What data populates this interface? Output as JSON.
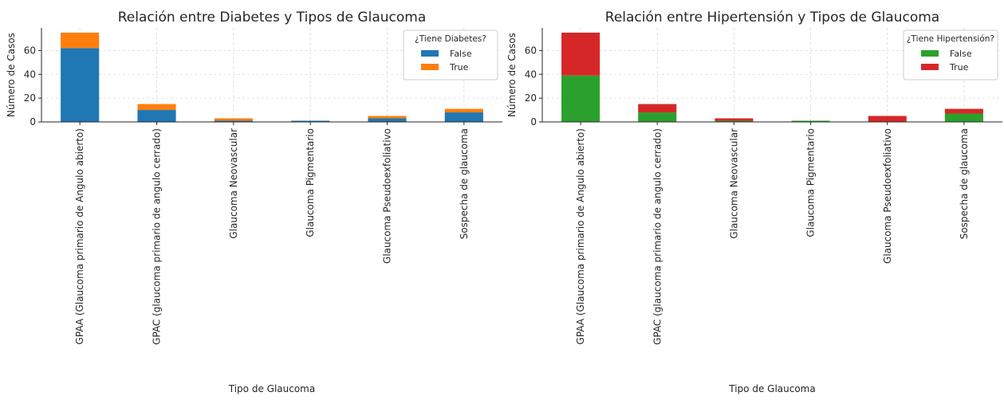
{
  "chart_data": [
    {
      "type": "bar",
      "stacked": true,
      "title": "Relación entre Diabetes y Tipos de Glaucoma",
      "xlabel": "Tipo de Glaucoma",
      "ylabel": "Número de Casos",
      "legend_title": "¿Tiene Diabetes?",
      "legend": "upper right",
      "grid": true,
      "categories": [
        "GPAA (Glaucoma primario de Angulo abierto)",
        "GPAC (glaucoma primario de angulo cerrado)",
        "Glaucoma Neovascular",
        "Glaucoma Pigmentario",
        "Glaucoma Pseudoexfoliativo",
        "Sospecha de glaucoma"
      ],
      "series": [
        {
          "name": "False",
          "color": "#1f77b4",
          "values": [
            62,
            10,
            1,
            1,
            3,
            8
          ]
        },
        {
          "name": "True",
          "color": "#ff7f0e",
          "values": [
            13,
            5,
            2,
            0,
            2,
            3
          ]
        }
      ],
      "ylim": [
        0,
        79
      ],
      "yticks": [
        0,
        20,
        40,
        60
      ]
    },
    {
      "type": "bar",
      "stacked": true,
      "title": "Relación entre Hipertensión y Tipos de Glaucoma",
      "xlabel": "Tipo de Glaucoma",
      "ylabel": "Número de Casos",
      "legend_title": "¿Tiene Hipertensión?",
      "legend": "upper right",
      "grid": true,
      "categories": [
        "GPAA (Glaucoma primario de Angulo abierto)",
        "GPAC (glaucoma primario de angulo cerrado)",
        "Glaucoma Neovascular",
        "Glaucoma Pigmentario",
        "Glaucoma Pseudoexfoliativo",
        "Sospecha de glaucoma"
      ],
      "series": [
        {
          "name": "False",
          "color": "#2ca02c",
          "values": [
            39,
            8,
            1,
            1,
            0,
            7
          ]
        },
        {
          "name": "True",
          "color": "#d62728",
          "values": [
            36,
            7,
            2,
            0,
            5,
            4
          ]
        }
      ],
      "ylim": [
        0,
        79
      ],
      "yticks": [
        0,
        20,
        40,
        60
      ]
    }
  ]
}
